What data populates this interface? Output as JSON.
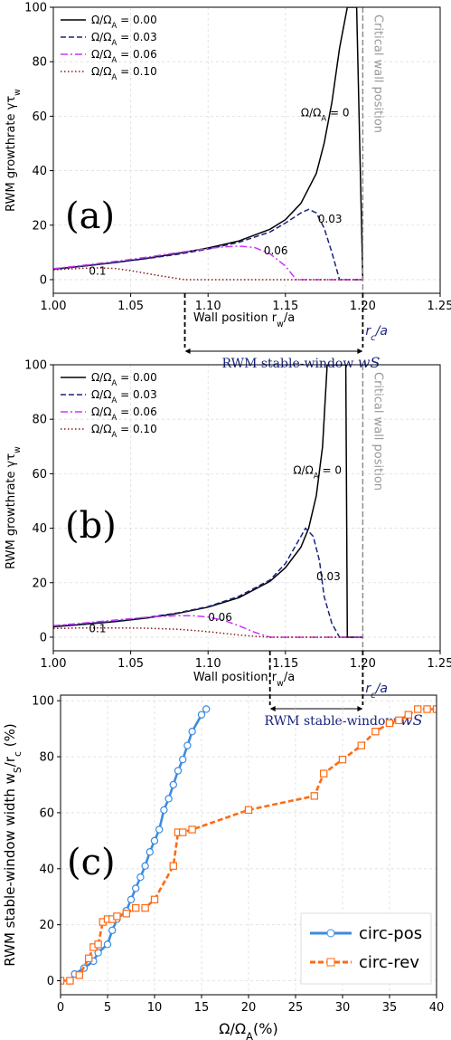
{
  "chart_data": [
    {
      "type": "line",
      "panel_label": "(a)",
      "ylabel": "RWM growthrate γτ_w",
      "xlabel": "Wall position r_w/a",
      "xlim": [
        1.0,
        1.25
      ],
      "ylim": [
        -5,
        100
      ],
      "x_ticks": [
        "1.00",
        "1.05",
        "1.10",
        "1.15",
        "1.20",
        "1.25"
      ],
      "y_ticks": [
        "0",
        "20",
        "40",
        "60",
        "80",
        "100"
      ],
      "grid": true,
      "legend_position": "top-left",
      "legend": [
        "Ω/Ω_A = 0.00",
        "Ω/Ω_A = 0.03",
        "Ω/Ω_A = 0.06",
        "Ω/Ω_A = 0.10"
      ],
      "critical_wall": {
        "x": 1.2,
        "label": "Critical wall position",
        "rc_label": "r_c/a"
      },
      "stable_window": {
        "x_start": 1.085,
        "x_end": 1.2,
        "label": "RWM stable-window",
        "symbol": "w_S"
      },
      "series": [
        {
          "style": "solid",
          "color": "#000000",
          "x": [
            1.0,
            1.02,
            1.04,
            1.06,
            1.08,
            1.1,
            1.12,
            1.14,
            1.15,
            1.16,
            1.17,
            1.175,
            1.18,
            1.185,
            1.19,
            1.194,
            1.196,
            1.2
          ],
          "y": [
            3.8,
            5,
            6.3,
            7.8,
            9.6,
            11.6,
            14.2,
            18.5,
            22,
            28,
            39,
            50,
            65,
            85,
            100,
            100,
            100,
            0
          ]
        },
        {
          "style": "dashed",
          "color": "#1a237e",
          "x": [
            1.0,
            1.02,
            1.04,
            1.06,
            1.08,
            1.1,
            1.12,
            1.14,
            1.15,
            1.16,
            1.165,
            1.17,
            1.175,
            1.18,
            1.185,
            1.2
          ],
          "y": [
            3.9,
            5,
            6.3,
            7.7,
            9.3,
            11.2,
            13.7,
            17.5,
            20.8,
            24.5,
            25.8,
            24.5,
            19,
            10,
            0,
            0
          ]
        },
        {
          "style": "dashdot",
          "color": "#cc33ff",
          "x": [
            1.0,
            1.02,
            1.04,
            1.06,
            1.08,
            1.1,
            1.11,
            1.12,
            1.13,
            1.14,
            1.15,
            1.157,
            1.2
          ],
          "y": [
            4,
            5.3,
            6.7,
            8.2,
            9.9,
            11.4,
            12,
            12.3,
            11.8,
            9.5,
            5,
            0,
            0
          ]
        },
        {
          "style": "dotted",
          "color": "#8b1a1a",
          "x": [
            1.0,
            1.02,
            1.03,
            1.04,
            1.05,
            1.06,
            1.07,
            1.08,
            1.085,
            1.2
          ],
          "y": [
            3.6,
            4.2,
            4.3,
            4.1,
            3.3,
            2.3,
            1.3,
            0.4,
            0,
            0
          ]
        }
      ],
      "annotations": [
        {
          "text": "Ω/Ω_A = 0",
          "x": 1.16,
          "y": 60
        },
        {
          "text": "0.03",
          "x": 1.171,
          "y": 21
        },
        {
          "text": "0.06",
          "x": 1.136,
          "y": 9.3
        },
        {
          "text": "0.1",
          "x": 1.023,
          "y": 1.8
        }
      ]
    },
    {
      "type": "line",
      "panel_label": "(b)",
      "ylabel": "RWM growthrate γτ_w",
      "xlabel": "Wall position r_w/a",
      "xlim": [
        1.0,
        1.25
      ],
      "ylim": [
        -5,
        100
      ],
      "x_ticks": [
        "1.00",
        "1.05",
        "1.10",
        "1.15",
        "1.20",
        "1.25"
      ],
      "y_ticks": [
        "0",
        "20",
        "40",
        "60",
        "80",
        "100"
      ],
      "grid": true,
      "legend_position": "top-left",
      "legend": [
        "Ω/Ω_A = 0.00",
        "Ω/Ω_A = 0.03",
        "Ω/Ω_A = 0.06",
        "Ω/Ω_A = 0.10"
      ],
      "critical_wall": {
        "x": 1.2,
        "label": "Critical wall position",
        "rc_label": "r_c/a"
      },
      "stable_window": {
        "x_start": 1.14,
        "x_end": 1.2,
        "label": "RWM stable-window",
        "symbol": "w_S"
      },
      "series": [
        {
          "style": "solid",
          "color": "#000000",
          "x": [
            1.0,
            1.02,
            1.04,
            1.06,
            1.08,
            1.1,
            1.12,
            1.14,
            1.15,
            1.16,
            1.165,
            1.17,
            1.174,
            1.177,
            1.185,
            1.189,
            1.19,
            1.2
          ],
          "y": [
            3.8,
            4.7,
            5.7,
            7,
            8.7,
            11,
            14.5,
            20.5,
            25.5,
            33,
            40,
            52,
            70,
            100,
            100,
            100,
            0,
            0
          ]
        },
        {
          "style": "dashed",
          "color": "#1a237e",
          "x": [
            1.0,
            1.02,
            1.04,
            1.06,
            1.08,
            1.1,
            1.12,
            1.14,
            1.15,
            1.158,
            1.163,
            1.168,
            1.172,
            1.175,
            1.18,
            1.185,
            1.2
          ],
          "y": [
            4,
            4.9,
            5.9,
            7.2,
            8.9,
            11.2,
            15,
            21,
            27,
            35,
            40,
            37,
            28,
            15,
            5,
            0,
            0
          ]
        },
        {
          "style": "dashdot",
          "color": "#cc33ff",
          "x": [
            1.0,
            1.02,
            1.04,
            1.06,
            1.08,
            1.09,
            1.1,
            1.11,
            1.12,
            1.13,
            1.14,
            1.2
          ],
          "y": [
            4.2,
            5.2,
            6.3,
            7.3,
            7.9,
            7.9,
            7.4,
            6.2,
            4.2,
            1.8,
            0,
            0
          ]
        },
        {
          "style": "dotted",
          "color": "#8b1a1a",
          "x": [
            1.0,
            1.02,
            1.04,
            1.06,
            1.08,
            1.09,
            1.1,
            1.11,
            1.12,
            1.13,
            1.14,
            1.2
          ],
          "y": [
            3.2,
            3.4,
            3.4,
            3.3,
            2.9,
            2.5,
            2,
            1.4,
            0.8,
            0.3,
            0,
            0
          ]
        }
      ],
      "annotations": [
        {
          "text": "Ω/Ω_A = 0",
          "x": 1.155,
          "y": 60
        },
        {
          "text": "0.03",
          "x": 1.17,
          "y": 21
        },
        {
          "text": "0.06",
          "x": 1.1,
          "y": 6
        },
        {
          "text": "0.1",
          "x": 1.023,
          "y": 1.8
        }
      ]
    },
    {
      "type": "line",
      "panel_label": "(c)",
      "ylabel": "RWM stable-window width w_S/r_c (%)",
      "xlabel": "Ω/Ω_A(%)",
      "xlim": [
        0,
        40
      ],
      "ylim": [
        -5,
        102
      ],
      "x_ticks": [
        "0",
        "5",
        "10",
        "15",
        "20",
        "25",
        "30",
        "35",
        "40"
      ],
      "y_ticks": [
        "0",
        "20",
        "40",
        "60",
        "80",
        "100"
      ],
      "grid": true,
      "legend_position": "lower-right",
      "series": [
        {
          "name": "circ-pos",
          "color": "#3b8be0",
          "marker": "circle",
          "style": "solid",
          "x": [
            1,
            1.5,
            2.5,
            3.5,
            4,
            5,
            5.5,
            6,
            7,
            7.5,
            8,
            8.5,
            9,
            9.5,
            10,
            10.5,
            11,
            11.5,
            12,
            12.5,
            13,
            13.5,
            14,
            15,
            15.5
          ],
          "y": [
            0,
            2.4,
            4.5,
            7,
            10,
            13,
            18,
            22,
            25,
            29,
            33,
            37,
            41,
            46,
            50,
            54,
            61,
            65,
            70,
            75,
            79,
            84,
            89,
            95,
            97
          ]
        },
        {
          "name": "circ-rev",
          "color": "#ff6a13",
          "marker": "square",
          "style": "dashed",
          "x": [
            0,
            1,
            2,
            3,
            3.5,
            4,
            4.5,
            5,
            5.5,
            6,
            7,
            8,
            9,
            10,
            12,
            12.5,
            13,
            14,
            20,
            27,
            28,
            30,
            32,
            33.5,
            35,
            36,
            37,
            38,
            39,
            40
          ],
          "y": [
            0,
            0,
            2,
            8,
            12,
            13,
            21,
            22,
            22,
            23,
            24,
            26,
            26,
            29,
            41,
            53,
            53,
            54,
            61,
            66,
            74,
            79,
            84,
            89,
            92,
            93,
            95,
            97,
            97,
            97
          ]
        }
      ]
    }
  ]
}
